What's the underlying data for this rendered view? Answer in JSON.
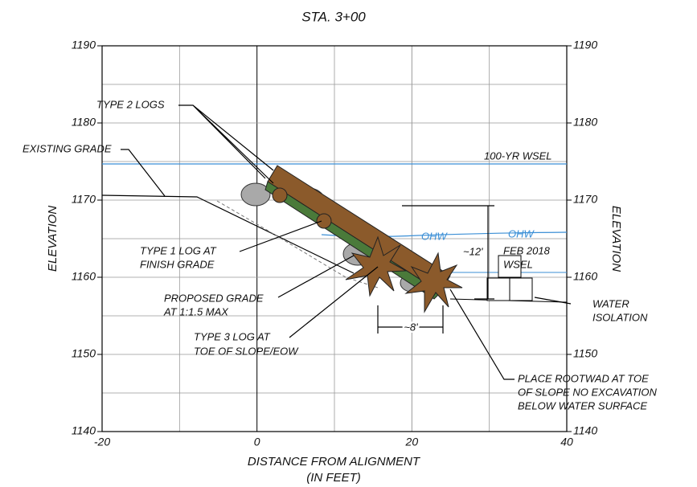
{
  "title": "STA. 3+00",
  "x_axis": {
    "label": "DISTANCE FROM ALIGNMENT",
    "sublabel": "(IN FEET)",
    "ticks": [
      -20,
      0,
      20,
      40
    ],
    "range": [
      -20,
      40
    ]
  },
  "y_axis": {
    "label": "ELEVATION",
    "ticks": [
      1140,
      1150,
      1160,
      1170,
      1180,
      1190
    ],
    "range": [
      1140,
      1190
    ]
  },
  "annotations": {
    "type2": "TYPE 2 LOGS",
    "existing": "EXISTING GRADE",
    "wsel100": "100-YR WSEL",
    "ohw": "OHW",
    "type1": [
      "TYPE 1 LOG AT",
      "FINISH GRADE"
    ],
    "proposed": [
      "PROPOSED GRADE",
      "AT 1:1.5 MAX"
    ],
    "type3": [
      "TYPE 3 LOG AT",
      "TOE OF SLOPE/EOW"
    ],
    "feb": [
      "FEB 2018",
      "WSEL"
    ],
    "dim_v": "~12'",
    "dim_h": "~8'",
    "isolation": [
      "WATER",
      "ISOLATION"
    ],
    "rootwad": [
      "PLACE ROOTWAD AT TOE",
      "OF SLOPE NO EXCAVATION",
      "BELOW WATER SURFACE"
    ]
  }
}
